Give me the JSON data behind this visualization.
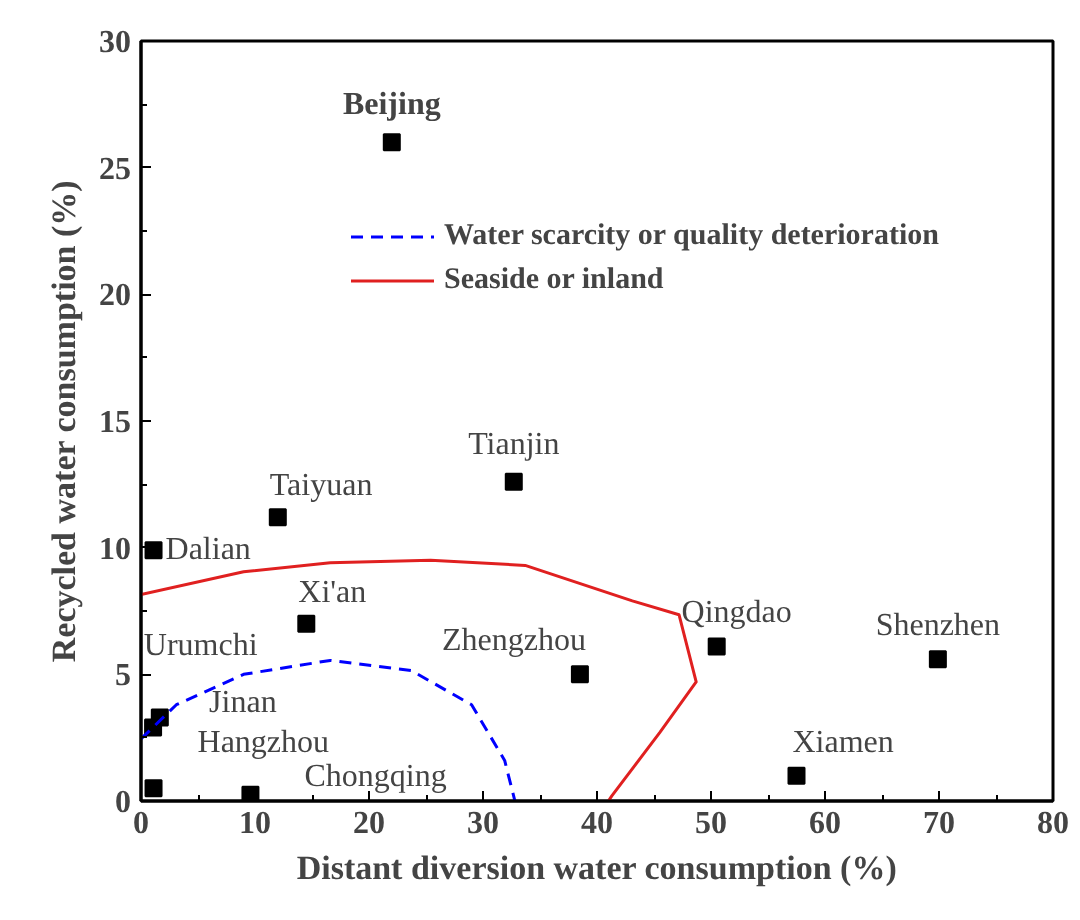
{
  "chart_data": {
    "type": "scatter",
    "xlabel": "Distant diversion water consumption (%)",
    "ylabel": "Recycled water consumption (%)",
    "xlim": [
      0,
      80
    ],
    "ylim": [
      0,
      30
    ],
    "xticks": [
      0,
      10,
      20,
      30,
      40,
      50,
      60,
      70,
      80
    ],
    "yticks": [
      0,
      5,
      10,
      15,
      20,
      25,
      30
    ],
    "grid": false,
    "legend": "top right",
    "series": [
      {
        "marker": "square",
        "color": "#000000",
        "x": [
          22.0,
          32.7,
          12.0,
          1.1,
          14.5,
          38.5,
          50.5,
          69.9,
          57.5,
          1.65,
          1.06,
          1.1,
          9.6
        ],
        "values": [
          26.0,
          12.6,
          11.2,
          9.9,
          7.0,
          5.0,
          6.1,
          5.6,
          1.0,
          3.3,
          2.9,
          0.5,
          0.25
        ]
      },
      {
        "type": "line",
        "name": "Water scarcity or quality deterioration",
        "color": "#0000ff",
        "line_style": "dashed",
        "x": [
          0,
          3.1,
          9.0,
          16.6,
          23.7,
          29.0,
          31.9,
          32.8
        ],
        "values": [
          2.45,
          3.8,
          5.0,
          5.55,
          5.15,
          3.8,
          1.6,
          0
        ]
      },
      {
        "type": "line",
        "name": "Seaside or inland",
        "color": "#e02020",
        "line_style": "solid",
        "x": [
          0,
          9.0,
          16.6,
          25.4,
          33.7,
          43.1,
          47.2,
          48.7,
          45.5,
          41.3,
          41.0
        ],
        "values": [
          8.15,
          9.05,
          9.4,
          9.5,
          9.3,
          7.9,
          7.35,
          4.7,
          2.7,
          0.2,
          0
        ]
      }
    ],
    "annotations": [
      {
        "text": "Beijing",
        "x": 22.0,
        "y": 26.0
      },
      {
        "text": "Tianjin",
        "x": 32.7,
        "y": 12.6
      },
      {
        "text": "Taiyuan",
        "x": 12.0,
        "y": 11.2
      },
      {
        "text": "Dalian",
        "x": 1.1,
        "y": 9.9
      },
      {
        "text": "Xi'an",
        "x": 14.5,
        "y": 7.0
      },
      {
        "text": "Zhengzhou",
        "x": 38.5,
        "y": 5.0
      },
      {
        "text": "Qingdao",
        "x": 50.5,
        "y": 6.1
      },
      {
        "text": "Shenzhen",
        "x": 69.9,
        "y": 5.6
      },
      {
        "text": "Xiamen",
        "x": 57.5,
        "y": 1.0
      },
      {
        "text": "Urumchi",
        "x": 1.65,
        "y": 3.3
      },
      {
        "text": "Jinan",
        "x": 1.06,
        "y": 2.9
      },
      {
        "text": "Hangzhou",
        "x": 1.1,
        "y": 0.5
      },
      {
        "text": "Chongqing",
        "x": 9.6,
        "y": 0.25
      }
    ]
  }
}
